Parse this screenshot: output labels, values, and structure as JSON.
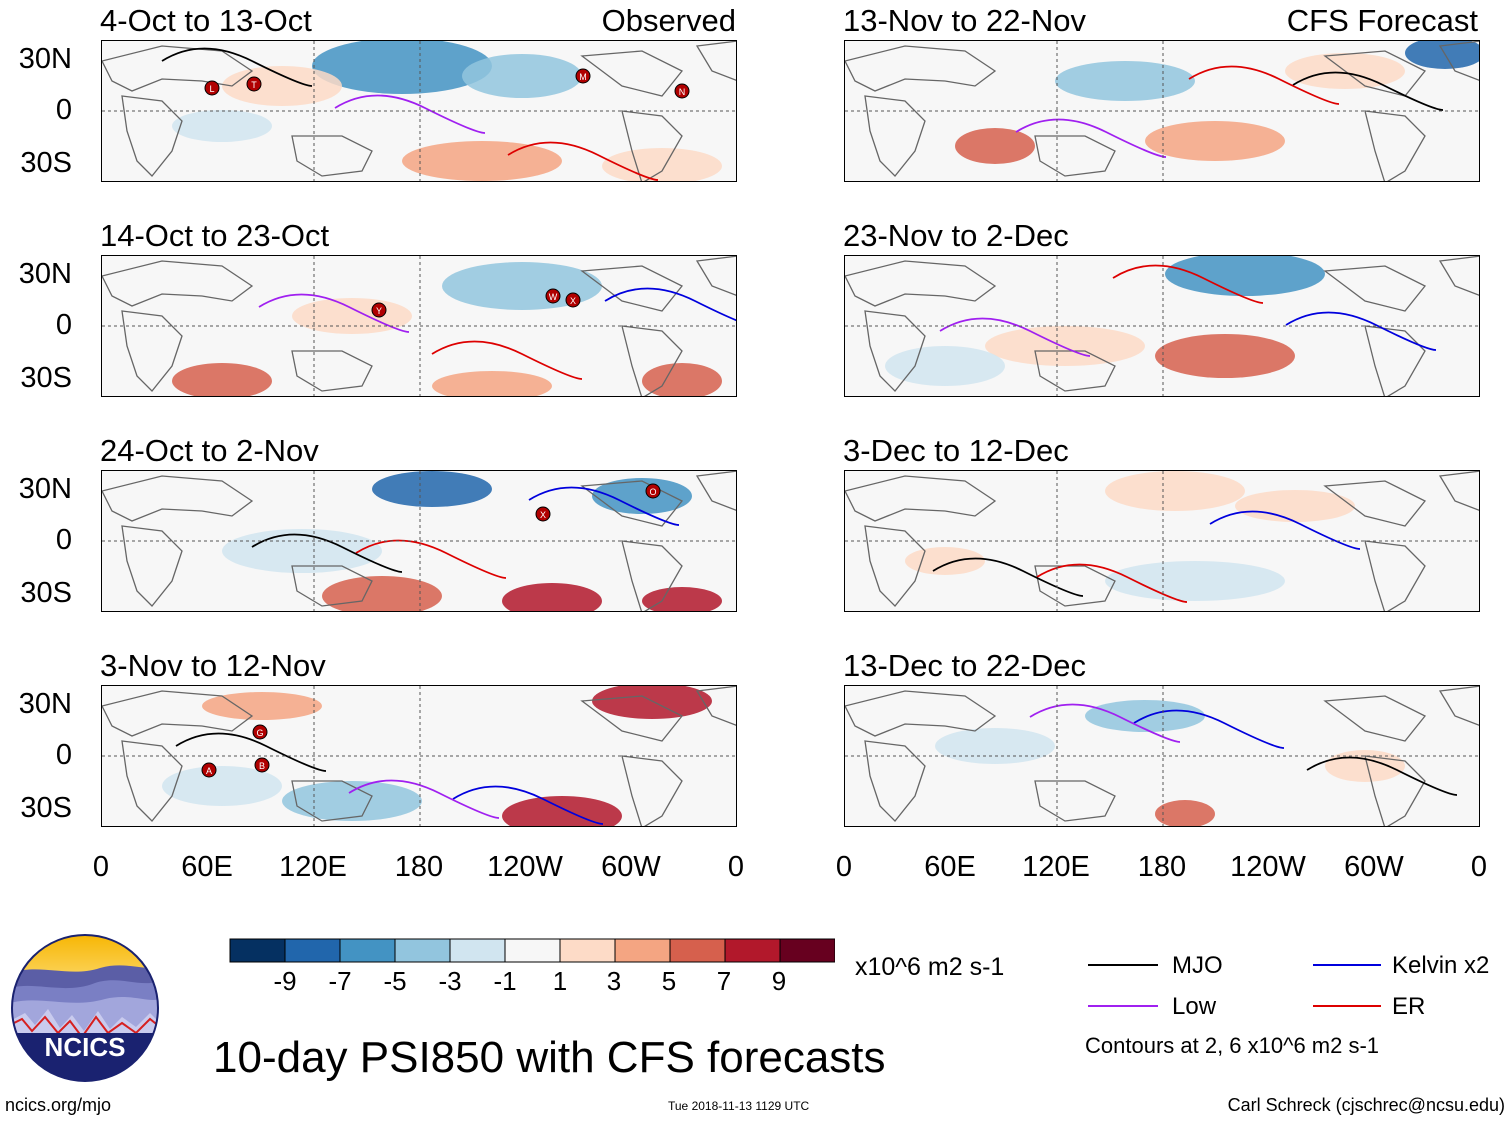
{
  "panels": {
    "observed": [
      {
        "title": "4-Oct to 13-Oct",
        "tag": "Observed"
      },
      {
        "title": "14-Oct to 23-Oct"
      },
      {
        "title": "24-Oct to 2-Nov"
      },
      {
        "title": "3-Nov to 12-Nov"
      }
    ],
    "forecast": [
      {
        "title": "13-Nov to 22-Nov",
        "tag": "CFS Forecast"
      },
      {
        "title": "23-Nov to 2-Dec"
      },
      {
        "title": "3-Dec to 12-Dec"
      },
      {
        "title": "13-Dec to 22-Dec"
      }
    ]
  },
  "axes": {
    "lat_labels": [
      "30N",
      "0",
      "30S"
    ],
    "lon_labels": [
      "0",
      "60E",
      "120E",
      "180",
      "120W",
      "60W",
      "0"
    ]
  },
  "cyclones": {
    "p0": [
      "L",
      "T",
      "M",
      "N"
    ],
    "p1": [
      "Y",
      "W",
      "X"
    ],
    "p2": [
      "X",
      "O"
    ],
    "p3": [
      "G",
      "A",
      "B"
    ]
  },
  "colorbar": {
    "colors": [
      "#053061",
      "#2166ac",
      "#4393c3",
      "#92c5de",
      "#d1e5f0",
      "#f7f7f7",
      "#fddbc7",
      "#f4a582",
      "#d6604d",
      "#b2182b",
      "#67001f"
    ],
    "tick_labels": [
      "-9",
      "-7",
      "-5",
      "-3",
      "-1",
      "1",
      "3",
      "5",
      "7",
      "9"
    ],
    "units": "x10^6 m2 s-1"
  },
  "legend": {
    "items": [
      {
        "label": "MJO",
        "color": "#000000"
      },
      {
        "label": "Kelvin x2",
        "color": "#0000dd"
      },
      {
        "label": "Low",
        "color": "#a020f0"
      },
      {
        "label": "ER",
        "color": "#dd0000"
      }
    ],
    "note": "Contours at 2, 6 x10^6 m2 s-1"
  },
  "logo": {
    "text": "NCICS"
  },
  "main_title": "10-day PSI850 with CFS forecasts",
  "footer": {
    "left": "ncics.org/mjo",
    "center": "Tue 2018-11-13 1129 UTC",
    "right": "Carl Schreck (cjschrec@ncsu.edu)"
  }
}
